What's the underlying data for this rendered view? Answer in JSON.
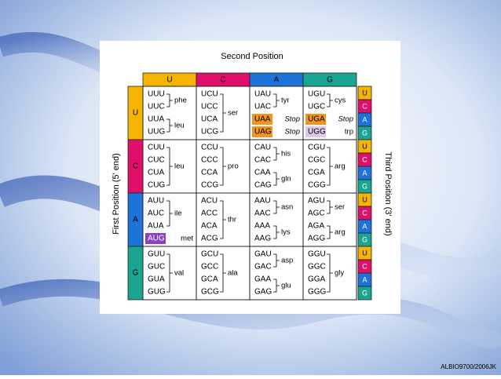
{
  "title": "Second Position",
  "left_label": "First Position (5' end)",
  "right_label": "Third Position (3' end)",
  "columns": [
    "U",
    "C",
    "A",
    "G"
  ],
  "third_bases": [
    "U",
    "C",
    "A",
    "G"
  ],
  "rows": [
    {
      "base": "U",
      "cells": [
        {
          "groups": [
            {
              "codons": [
                "UUU",
                "UUC"
              ],
              "amino": "phe"
            },
            {
              "codons": [
                "UUA",
                "UUG"
              ],
              "amino": "leu"
            }
          ]
        },
        {
          "groups": [
            {
              "codons": [
                "UCU",
                "UCC",
                "UCA",
                "UCG"
              ],
              "amino": "ser"
            }
          ]
        },
        {
          "groups": [
            {
              "codons": [
                "UAU",
                "UAC"
              ],
              "amino": "tyr"
            },
            {
              "codons": [
                "UAA"
              ],
              "amino": "Stop",
              "highlight": "#f0961e"
            },
            {
              "codons": [
                "UAG"
              ],
              "amino": "Stop",
              "highlight": "#f0961e"
            }
          ]
        },
        {
          "groups": [
            {
              "codons": [
                "UGU",
                "UGC"
              ],
              "amino": "cys"
            },
            {
              "codons": [
                "UGA"
              ],
              "amino": "Stop",
              "highlight": "#f0961e"
            },
            {
              "codons": [
                "UGG"
              ],
              "amino": "trp",
              "highlight": "#e0c8e8"
            }
          ]
        }
      ]
    },
    {
      "base": "C",
      "cells": [
        {
          "groups": [
            {
              "codons": [
                "CUU",
                "CUC",
                "CUA",
                "CUG"
              ],
              "amino": "leu"
            }
          ]
        },
        {
          "groups": [
            {
              "codons": [
                "CCU",
                "CCC",
                "CCA",
                "CCG"
              ],
              "amino": "pro"
            }
          ]
        },
        {
          "groups": [
            {
              "codons": [
                "CAU",
                "CAC"
              ],
              "amino": "his"
            },
            {
              "codons": [
                "CAA",
                "CAG"
              ],
              "amino": "gln"
            }
          ]
        },
        {
          "groups": [
            {
              "codons": [
                "CGU",
                "CGC",
                "CGA",
                "CGG"
              ],
              "amino": "arg"
            }
          ]
        }
      ]
    },
    {
      "base": "A",
      "cells": [
        {
          "groups": [
            {
              "codons": [
                "AUU",
                "AUC",
                "AUA"
              ],
              "amino": "ile"
            },
            {
              "codons": [
                "AUG"
              ],
              "amino": "met",
              "highlight": "#8a3fc8"
            }
          ]
        },
        {
          "groups": [
            {
              "codons": [
                "ACU",
                "ACC",
                "ACA",
                "ACG"
              ],
              "amino": "thr"
            }
          ]
        },
        {
          "groups": [
            {
              "codons": [
                "AAU",
                "AAC"
              ],
              "amino": "asn"
            },
            {
              "codons": [
                "AAA",
                "AAG"
              ],
              "amino": "lys"
            }
          ]
        },
        {
          "groups": [
            {
              "codons": [
                "AGU",
                "AGC"
              ],
              "amino": "ser"
            },
            {
              "codons": [
                "AGA",
                "AGG"
              ],
              "amino": "arg"
            }
          ]
        }
      ]
    },
    {
      "base": "G",
      "cells": [
        {
          "groups": [
            {
              "codons": [
                "GUU",
                "GUC",
                "GUA",
                "GUG"
              ],
              "amino": "val"
            }
          ]
        },
        {
          "groups": [
            {
              "codons": [
                "GCU",
                "GCC",
                "GCA",
                "GCG"
              ],
              "amino": "ala"
            }
          ]
        },
        {
          "groups": [
            {
              "codons": [
                "GAU",
                "GAC"
              ],
              "amino": "asp"
            },
            {
              "codons": [
                "GAA",
                "GAG"
              ],
              "amino": "glu"
            }
          ]
        },
        {
          "groups": [
            {
              "codons": [
                "GGU",
                "GGC",
                "GGA",
                "GGG"
              ],
              "amino": "gly"
            }
          ]
        }
      ]
    }
  ],
  "credit": "ALBIO9700/2006JK"
}
